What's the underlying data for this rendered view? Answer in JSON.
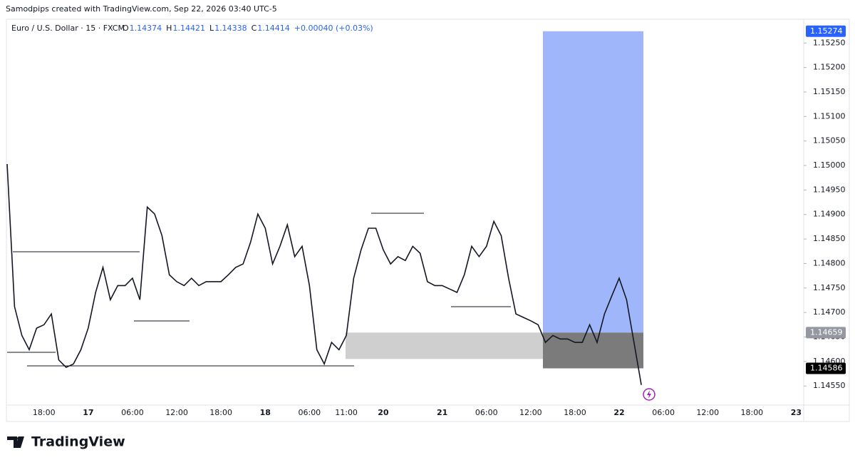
{
  "header": {
    "text": "Samodpips created with TradingView.com, Sep 22, 2026 03:40 UTC-5"
  },
  "footer": {
    "logo": "TradingView"
  },
  "chart_data": {
    "type": "line",
    "title": "Euro / U.S. Dollar · 15 · FXCM",
    "ohlc": [
      {
        "label": "O",
        "value": 1.14374
      },
      {
        "label": "H",
        "value": 1.14421
      },
      {
        "label": "L",
        "value": 1.14338
      },
      {
        "label": "C",
        "value": 1.14414
      }
    ],
    "change": "+0.00040 (+0.03%)",
    "categories": [
      null,
      null,
      null,
      null,
      null,
      "18:00",
      null,
      null,
      null,
      null,
      null,
      "17",
      null,
      null,
      null,
      null,
      null,
      "06:00",
      null,
      null,
      null,
      null,
      null,
      "12:00",
      null,
      null,
      null,
      null,
      null,
      "18:00",
      null,
      null,
      null,
      null,
      null,
      "18",
      null,
      null,
      null,
      null,
      null,
      "06:00",
      null,
      null,
      null,
      null,
      "11:00",
      null,
      null,
      null,
      null,
      "20",
      null,
      null,
      null,
      null,
      null,
      null,
      null,
      "21",
      null,
      null,
      null,
      null,
      null,
      "06:00",
      null,
      null,
      null,
      null,
      null,
      "12:00",
      null,
      null,
      null,
      null,
      null,
      "18:00",
      null,
      null,
      null,
      null,
      null,
      "22",
      null,
      null,
      null,
      null,
      null,
      "06:00",
      null,
      null,
      null,
      null,
      null,
      "12:00",
      null,
      null,
      null,
      null,
      null,
      "18:00",
      null,
      null,
      null,
      null,
      null,
      "23"
    ],
    "series": [
      {
        "name": "EURUSD",
        "color": "#131722",
        "values": [
          1.15003,
          1.14712,
          1.14653,
          1.14624,
          1.14668,
          1.14675,
          1.14697,
          1.14603,
          1.14588,
          1.14595,
          1.14624,
          1.14668,
          1.14741,
          1.14792,
          1.14726,
          1.14755,
          1.14755,
          1.1477,
          1.14726,
          1.14915,
          1.14901,
          1.14857,
          1.14777,
          1.14763,
          1.14755,
          1.1477,
          1.14755,
          1.14763,
          1.14763,
          1.14763,
          1.14777,
          1.14792,
          1.14799,
          1.14843,
          1.14901,
          1.14872,
          1.14799,
          1.14835,
          1.14879,
          1.14814,
          1.14835,
          1.14755,
          1.14624,
          1.14595,
          1.14639,
          1.14624,
          1.14653,
          1.1477,
          1.14828,
          1.14872,
          1.14872,
          1.14828,
          1.14799,
          1.14814,
          1.14806,
          1.14835,
          1.14821,
          1.14763,
          1.14755,
          1.14755,
          1.14748,
          1.14741,
          1.14777,
          1.14835,
          1.14814,
          1.14835,
          1.14886,
          1.14857,
          1.1477,
          1.14697,
          1.1469,
          1.14683,
          1.14675,
          1.14639,
          1.14653,
          1.14646,
          1.14646,
          1.14639,
          1.14639,
          1.14675,
          1.14639,
          1.14697,
          1.14734,
          1.1477,
          1.14726,
          1.14639,
          1.14552,
          null,
          null,
          null,
          null,
          null,
          null,
          null,
          null,
          null,
          null,
          null,
          null,
          null,
          null,
          null,
          null,
          null,
          null,
          null,
          null,
          null
        ]
      }
    ],
    "ylim": [
      1.14511,
      1.15297
    ],
    "yticks": [
      {
        "value": 1.1525,
        "label": "1.15250"
      },
      {
        "value": 1.152,
        "label": "1.15200"
      },
      {
        "value": 1.1515,
        "label": "1.15150"
      },
      {
        "value": 1.151,
        "label": "1.15100"
      },
      {
        "value": 1.1505,
        "label": "1.15050"
      },
      {
        "value": 1.15,
        "label": "1.15000"
      },
      {
        "value": 1.1495,
        "label": "1.14950"
      },
      {
        "value": 1.149,
        "label": "1.14900"
      },
      {
        "value": 1.1485,
        "label": "1.14850"
      },
      {
        "value": 1.148,
        "label": "1.14800"
      },
      {
        "value": 1.1475,
        "label": "1.14750"
      },
      {
        "value": 1.147,
        "label": "1.14700"
      },
      {
        "value": 1.1465,
        "label": "1.14650"
      },
      {
        "value": 1.146,
        "label": "1.14600"
      },
      {
        "value": 1.1455,
        "label": "1.14550"
      }
    ],
    "price_labels": [
      {
        "value": 1.15274,
        "color": "#2962ff"
      },
      {
        "value": 1.14659,
        "color": "#9598a1"
      },
      {
        "value": 1.14586,
        "color": "#000000"
      }
    ]
  }
}
